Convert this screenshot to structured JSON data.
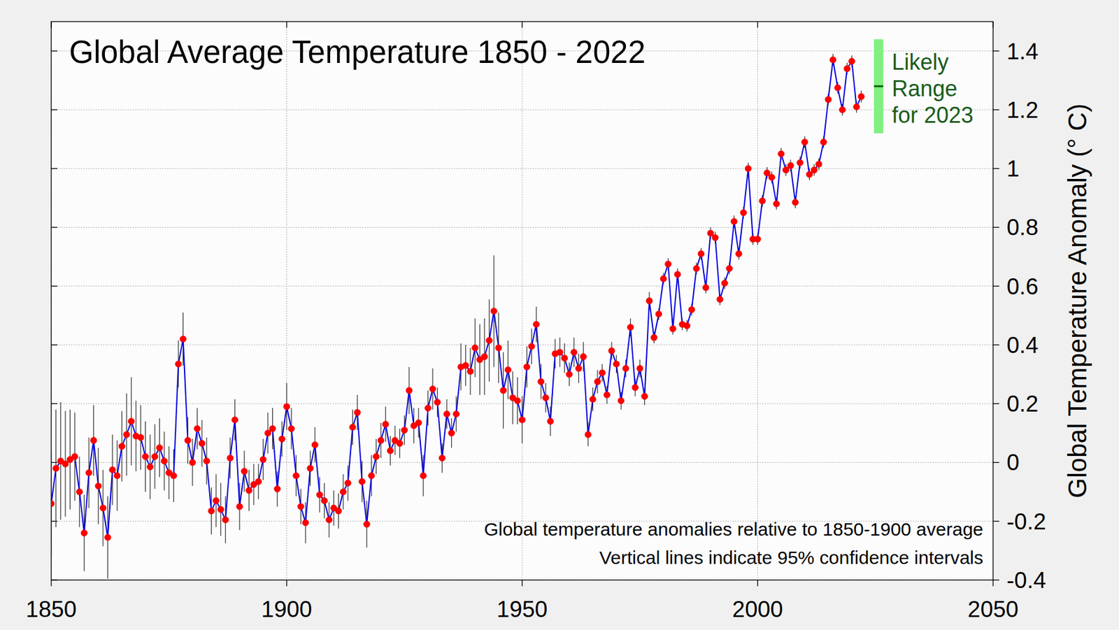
{
  "chart_data": {
    "type": "line",
    "title": "Global Average Temperature 1850 - 2022",
    "y_label": "Global Temperature Anomaly (° C)",
    "annotations": [
      "Global temperature anomalies relative to 1850-1900 average",
      "Vertical lines indicate 95% confidence intervals"
    ],
    "color": "#0000dd",
    "marker": "circle",
    "grid": true,
    "xlim": [
      1850,
      2050
    ],
    "xticks": [
      1850,
      1900,
      1950,
      2000,
      2050
    ],
    "ylim": [
      -0.4,
      1.5
    ],
    "yticks": [
      -0.4,
      -0.2,
      0,
      0.2,
      0.4,
      0.6,
      0.8,
      1,
      1.2,
      1.4
    ],
    "x": [
      1850,
      1851,
      1852,
      1853,
      1854,
      1855,
      1856,
      1857,
      1858,
      1859,
      1860,
      1861,
      1862,
      1863,
      1864,
      1865,
      1866,
      1867,
      1868,
      1869,
      1870,
      1871,
      1872,
      1873,
      1874,
      1875,
      1876,
      1877,
      1878,
      1879,
      1880,
      1881,
      1882,
      1883,
      1884,
      1885,
      1886,
      1887,
      1888,
      1889,
      1890,
      1891,
      1892,
      1893,
      1894,
      1895,
      1896,
      1897,
      1898,
      1899,
      1900,
      1901,
      1902,
      1903,
      1904,
      1905,
      1906,
      1907,
      1908,
      1909,
      1910,
      1911,
      1912,
      1913,
      1914,
      1915,
      1916,
      1917,
      1918,
      1919,
      1920,
      1921,
      1922,
      1923,
      1924,
      1925,
      1926,
      1927,
      1928,
      1929,
      1930,
      1931,
      1932,
      1933,
      1934,
      1935,
      1936,
      1937,
      1938,
      1939,
      1940,
      1941,
      1942,
      1943,
      1944,
      1945,
      1946,
      1947,
      1948,
      1949,
      1950,
      1951,
      1952,
      1953,
      1954,
      1955,
      1956,
      1957,
      1958,
      1959,
      1960,
      1961,
      1962,
      1963,
      1964,
      1965,
      1966,
      1967,
      1968,
      1969,
      1970,
      1971,
      1972,
      1973,
      1974,
      1975,
      1976,
      1977,
      1978,
      1979,
      1980,
      1981,
      1982,
      1983,
      1984,
      1985,
      1986,
      1987,
      1988,
      1989,
      1990,
      1991,
      1992,
      1993,
      1994,
      1995,
      1996,
      1997,
      1998,
      1999,
      2000,
      2001,
      2002,
      2003,
      2004,
      2005,
      2006,
      2007,
      2008,
      2009,
      2010,
      2011,
      2012,
      2013,
      2014,
      2015,
      2016,
      2017,
      2018,
      2019,
      2020,
      2021,
      2022
    ],
    "values": [
      -0.14,
      -0.02,
      0.005,
      -0.005,
      0.01,
      0.02,
      -0.1,
      -0.24,
      -0.035,
      0.075,
      -0.08,
      -0.155,
      -0.255,
      -0.025,
      -0.045,
      0.055,
      0.095,
      0.14,
      0.09,
      0.085,
      0.02,
      -0.015,
      0.02,
      0.05,
      0.005,
      -0.035,
      -0.045,
      0.335,
      0.42,
      0.075,
      0.0,
      0.115,
      0.065,
      0.005,
      -0.165,
      -0.13,
      -0.16,
      -0.195,
      0.015,
      0.145,
      -0.15,
      -0.03,
      -0.095,
      -0.075,
      -0.065,
      0.01,
      0.1,
      0.115,
      -0.09,
      0.08,
      0.19,
      0.115,
      -0.045,
      -0.15,
      -0.205,
      -0.02,
      0.06,
      -0.11,
      -0.13,
      -0.195,
      -0.155,
      -0.165,
      -0.1,
      -0.07,
      0.12,
      0.17,
      -0.065,
      -0.21,
      -0.045,
      0.02,
      0.075,
      0.13,
      0.04,
      0.075,
      0.065,
      0.11,
      0.245,
      0.125,
      0.135,
      -0.045,
      0.185,
      0.25,
      0.205,
      0.015,
      0.165,
      0.1,
      0.165,
      0.325,
      0.33,
      0.31,
      0.39,
      0.35,
      0.36,
      0.415,
      0.515,
      0.39,
      0.245,
      0.315,
      0.22,
      0.21,
      0.145,
      0.325,
      0.395,
      0.47,
      0.275,
      0.22,
      0.14,
      0.37,
      0.375,
      0.355,
      0.3,
      0.375,
      0.32,
      0.36,
      0.095,
      0.215,
      0.275,
      0.305,
      0.23,
      0.38,
      0.335,
      0.21,
      0.32,
      0.46,
      0.255,
      0.32,
      0.225,
      0.55,
      0.425,
      0.505,
      0.625,
      0.675,
      0.455,
      0.64,
      0.47,
      0.465,
      0.52,
      0.66,
      0.71,
      0.595,
      0.78,
      0.765,
      0.555,
      0.61,
      0.66,
      0.82,
      0.71,
      0.85,
      1.0,
      0.76,
      0.76,
      0.89,
      0.985,
      0.97,
      0.88,
      1.05,
      0.995,
      1.01,
      0.885,
      1.02,
      1.09,
      0.98,
      0.995,
      1.015,
      1.09,
      1.235,
      1.37,
      1.275,
      1.2,
      1.34,
      1.365,
      1.21,
      1.245
    ],
    "errors": [
      0.18,
      0.2,
      0.2,
      0.18,
      0.17,
      0.15,
      0.12,
      0.13,
      0.12,
      0.12,
      0.13,
      0.13,
      0.14,
      0.12,
      0.12,
      0.12,
      0.14,
      0.15,
      0.12,
      0.11,
      0.12,
      0.11,
      0.11,
      0.1,
      0.1,
      0.09,
      0.09,
      0.08,
      0.09,
      0.08,
      0.08,
      0.07,
      0.08,
      0.08,
      0.08,
      0.09,
      0.09,
      0.08,
      0.07,
      0.07,
      0.08,
      0.07,
      0.07,
      0.07,
      0.06,
      0.07,
      0.07,
      0.07,
      0.06,
      0.06,
      0.08,
      0.07,
      0.07,
      0.06,
      0.07,
      0.06,
      0.06,
      0.06,
      0.06,
      0.06,
      0.06,
      0.06,
      0.06,
      0.06,
      0.06,
      0.06,
      0.07,
      0.08,
      0.07,
      0.06,
      0.06,
      0.06,
      0.05,
      0.05,
      0.05,
      0.05,
      0.08,
      0.06,
      0.05,
      0.07,
      0.06,
      0.07,
      0.05,
      0.05,
      0.05,
      0.05,
      0.06,
      0.08,
      0.07,
      0.08,
      0.1,
      0.12,
      0.13,
      0.14,
      0.19,
      0.12,
      0.13,
      0.1,
      0.09,
      0.08,
      0.08,
      0.07,
      0.06,
      0.06,
      0.06,
      0.05,
      0.05,
      0.05,
      0.05,
      0.05,
      0.04,
      0.05,
      0.05,
      0.05,
      0.04,
      0.04,
      0.04,
      0.03,
      0.03,
      0.03,
      0.03,
      0.03,
      0.03,
      0.03,
      0.03,
      0.03,
      0.03,
      0.03,
      0.02,
      0.02,
      0.02,
      0.02,
      0.02,
      0.02,
      0.02,
      0.02,
      0.02,
      0.02,
      0.02,
      0.02,
      0.02,
      0.02,
      0.02,
      0.02,
      0.02,
      0.02,
      0.02,
      0.02,
      0.02,
      0.02,
      0.02,
      0.02,
      0.02,
      0.02,
      0.02,
      0.02,
      0.02,
      0.02,
      0.02,
      0.02,
      0.02,
      0.02,
      0.02,
      0.02,
      0.02,
      0.02,
      0.02,
      0.02,
      0.02,
      0.02,
      0.02,
      0.02,
      0.02
    ],
    "likely_range": {
      "year": 2023,
      "low": 1.12,
      "high": 1.44,
      "central": 1.28,
      "color": "#80f080",
      "label_lines": [
        "Likely",
        "Range",
        "for 2023"
      ]
    }
  }
}
